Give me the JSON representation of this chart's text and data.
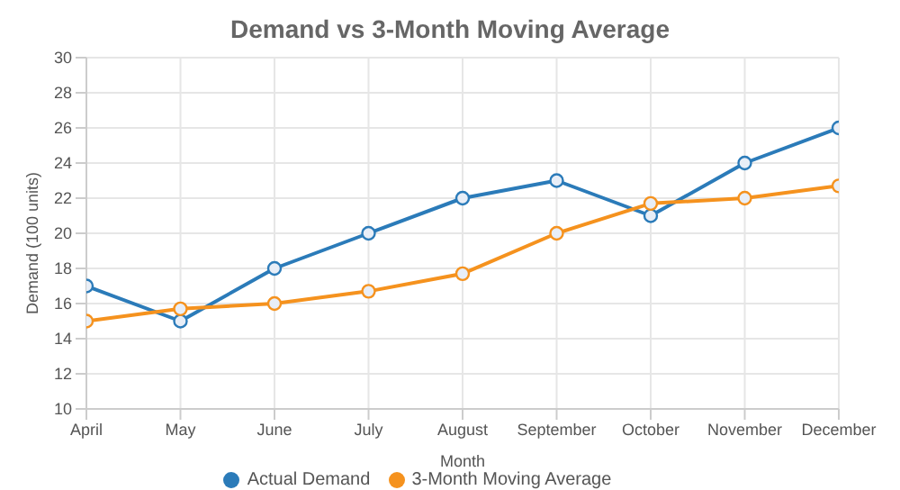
{
  "chart_data": {
    "type": "line",
    "title": "Demand vs 3-Month Moving Average",
    "xlabel": "Month",
    "ylabel": "Demand (100 units)",
    "categories": [
      "April",
      "May",
      "June",
      "July",
      "August",
      "September",
      "October",
      "November",
      "December"
    ],
    "series": [
      {
        "name": "Actual Demand",
        "color": "#2b7bb9",
        "values": [
          17,
          15,
          18,
          20,
          22,
          23,
          21,
          24,
          26
        ]
      },
      {
        "name": "3-Month Moving Average",
        "color": "#f5921e",
        "values": [
          15,
          15.7,
          16,
          16.7,
          17.7,
          20,
          21.7,
          22,
          22.7
        ]
      }
    ],
    "ylim": [
      10,
      30
    ],
    "yticks": [
      10,
      12,
      14,
      16,
      18,
      20,
      22,
      24,
      26,
      28,
      30
    ],
    "grid": true,
    "legend": "bottom",
    "marker": "circle",
    "line_style": "solid"
  }
}
